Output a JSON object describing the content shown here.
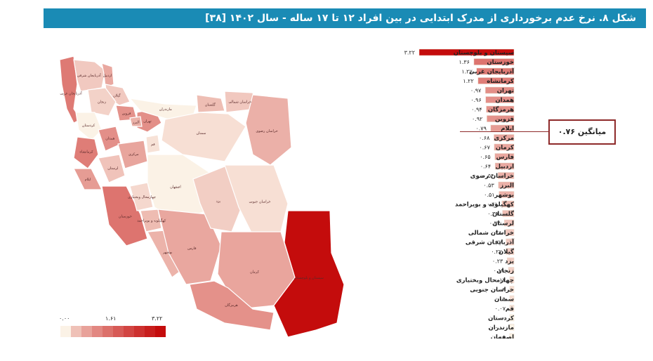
{
  "title": "شکل ۸. نرخ عدم برخورداری از مدرک ابتدایی در بین افراد ۱۲ تا ۱۷ ساله - سال ۱۴۰۲ [۳۸]",
  "average_label": "میانگین ۰.۷۶",
  "legend": {
    "min_label": "۰.۰۰",
    "mid_label": "۱.۶۱",
    "max_label": "۳.۲۲"
  },
  "colors": {
    "title_bg": "#1a8bb5",
    "max": "#c40c0c",
    "low": "#fbf2e6",
    "avg_border": "#8e2a2a"
  },
  "chart_data": {
    "type": "bar",
    "orientation": "horizontal",
    "xlim": [
      0,
      3.22
    ],
    "average": 0.76,
    "categories": [
      "سیستان و بلوچستان",
      "خوزستان",
      "آذربایجان غربی",
      "کرمانشاه",
      "تهران",
      "همدان",
      "هرمزگان",
      "قزوین",
      "ایلام",
      "مرکزی",
      "کرمان",
      "فارس",
      "اردبیل",
      "خراسان رضوی",
      "البرز",
      "بوشهر",
      "کهگیلویه و بویراحمد",
      "گلستان",
      "لرستان",
      "خراسان شمالی",
      "آذربایجان شرقی",
      "گیلان",
      "یزد",
      "زنجان",
      "چهارمحال وبختیاری",
      "خراسان جنوبی",
      "سمنان",
      "قم",
      "کردستان",
      "مازندران",
      "اصفهان"
    ],
    "values": [
      3.22,
      1.36,
      1.27,
      1.22,
      0.97,
      0.96,
      0.94,
      0.92,
      0.79,
      0.68,
      0.67,
      0.65,
      0.64,
      0.54,
      0.53,
      0.51,
      0.41,
      0.39,
      0.33,
      0.28,
      0.27,
      0.27,
      0.23,
      0.19,
      0.14,
      0.09,
      0.09,
      0.07,
      0.0,
      0.0,
      0.0
    ],
    "value_labels": [
      "۳.۲۲",
      "۱.۳۶",
      "۱.۲۷",
      "۱.۲۲",
      "۰.۹۷",
      "۰.۹۶",
      "۰.۹۴",
      "۰.۹۲",
      "۰.۷۹",
      "۰.۶۸",
      "۰.۶۷",
      "۰.۶۵",
      "۰.۶۴",
      "۰.۵۴",
      "۰.۵۳",
      "۰.۵۱",
      "۰.۴۱",
      "۰.۳۹",
      "۰.۳۳",
      "۰.۲۸",
      "۰.۲۷",
      "۰.۲۷",
      "۰.۲۳",
      "۰.۱۹",
      "۰.۱۴",
      "۰.۰۹",
      "۰.۰۹",
      "۰.۰۷",
      "۰.۰۰",
      "۰.۰۰",
      "۰.۰۰"
    ]
  }
}
